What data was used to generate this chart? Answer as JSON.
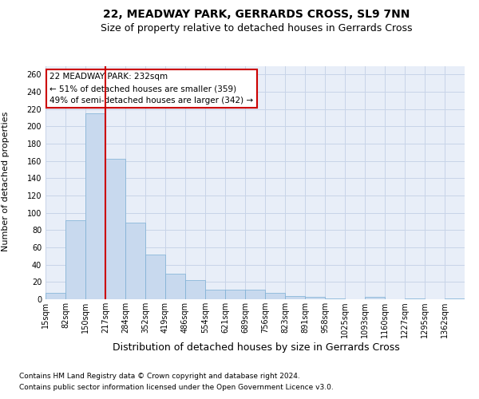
{
  "title": "22, MEADWAY PARK, GERRARDS CROSS, SL9 7NN",
  "subtitle": "Size of property relative to detached houses in Gerrards Cross",
  "xlabel": "Distribution of detached houses by size in Gerrards Cross",
  "ylabel": "Number of detached properties",
  "footer1": "Contains HM Land Registry data © Crown copyright and database right 2024.",
  "footer2": "Contains public sector information licensed under the Open Government Licence v3.0.",
  "annotation_title": "22 MEADWAY PARK: 232sqm",
  "annotation_line1": "← 51% of detached houses are smaller (359)",
  "annotation_line2": "49% of semi-detached houses are larger (342) →",
  "vline_bin": 3,
  "bar_color": "#c8d9ee",
  "bar_edge_color": "#7bafd4",
  "vline_color": "#cc0000",
  "categories": [
    "15sqm",
    "82sqm",
    "150sqm",
    "217sqm",
    "284sqm",
    "352sqm",
    "419sqm",
    "486sqm",
    "554sqm",
    "621sqm",
    "689sqm",
    "756sqm",
    "823sqm",
    "891sqm",
    "958sqm",
    "1025sqm",
    "1093sqm",
    "1160sqm",
    "1227sqm",
    "1295sqm",
    "1362sqm"
  ],
  "values": [
    7,
    91,
    215,
    162,
    89,
    52,
    30,
    22,
    11,
    11,
    11,
    7,
    4,
    3,
    1,
    0,
    3,
    0,
    1,
    0,
    1
  ],
  "ylim": [
    0,
    270
  ],
  "yticks": [
    0,
    20,
    40,
    60,
    80,
    100,
    120,
    140,
    160,
    180,
    200,
    220,
    240,
    260
  ],
  "grid_color": "#c8d4e8",
  "background_color": "#e8eef8",
  "title_fontsize": 10,
  "subtitle_fontsize": 9,
  "ylabel_fontsize": 8,
  "xlabel_fontsize": 9,
  "tick_fontsize": 7,
  "footer_fontsize": 6.5,
  "annotation_fontsize": 7.5,
  "annotation_box_color": "#ffffff",
  "annotation_box_edge": "#cc0000"
}
